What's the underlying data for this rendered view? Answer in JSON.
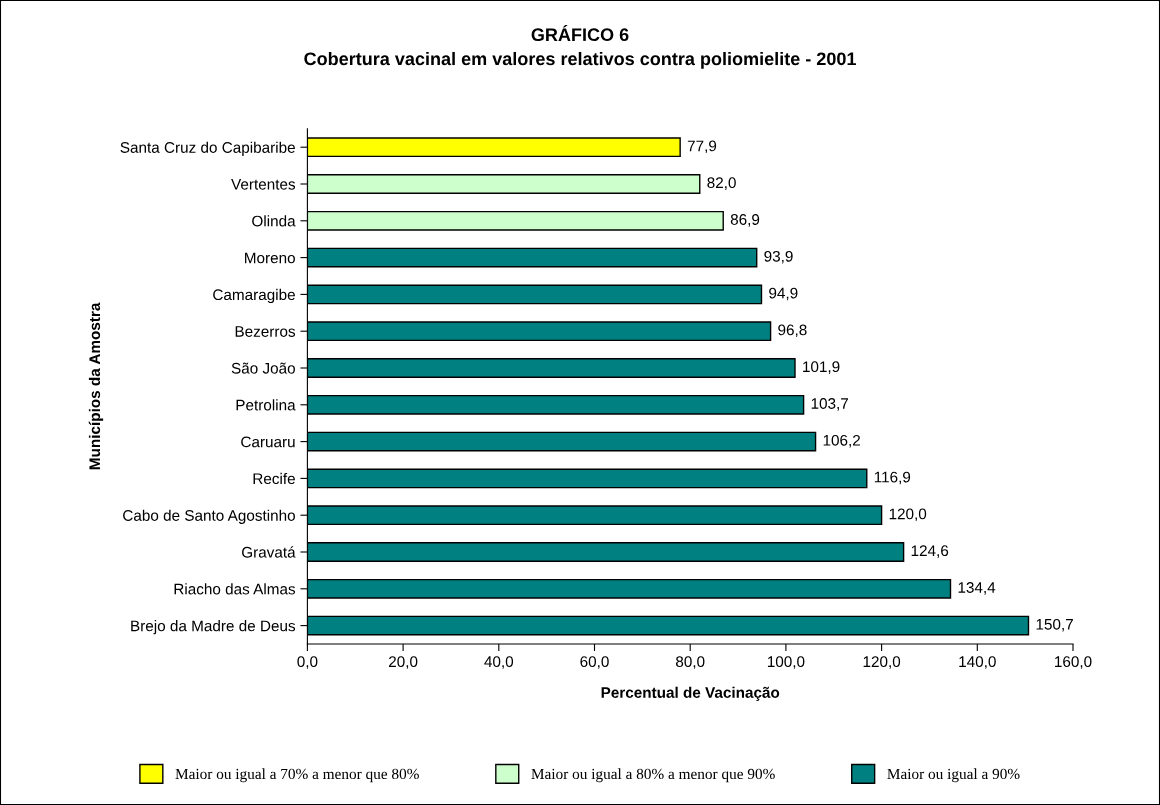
{
  "chart_data": {
    "type": "bar",
    "orientation": "horizontal",
    "title": "GRÁFICO 6",
    "subtitle": "Cobertura vacinal em valores relativos contra poliomielite - 2001",
    "xlabel": "Percentual de Vacinação",
    "ylabel": "Municípios da Amostra",
    "categories": [
      "Santa Cruz do Capibaribe",
      "Vertentes",
      "Olinda",
      "Moreno",
      "Camaragibe",
      "Bezerros",
      "São João",
      "Petrolina",
      "Caruaru",
      "Recife",
      "Cabo de Santo Agostinho",
      "Gravatá",
      "Riacho das Almas",
      "Brejo da Madre de Deus"
    ],
    "series": [
      {
        "name": "Maior ou igual a 70% a menor que 80%",
        "color": "#ffff00",
        "values": [
          77.9,
          null,
          null,
          null,
          null,
          null,
          null,
          null,
          null,
          null,
          null,
          null,
          null,
          null
        ],
        "value_labels": [
          "77,9",
          null,
          null,
          null,
          null,
          null,
          null,
          null,
          null,
          null,
          null,
          null,
          null,
          null
        ]
      },
      {
        "name": "Maior ou igual a 80% a menor que 90%",
        "color": "#ccffcc",
        "values": [
          null,
          82.0,
          86.9,
          null,
          null,
          null,
          null,
          null,
          null,
          null,
          null,
          null,
          null,
          null
        ],
        "value_labels": [
          null,
          "82,0",
          "86,9",
          null,
          null,
          null,
          null,
          null,
          null,
          null,
          null,
          null,
          null,
          null
        ]
      },
      {
        "name": "Maior ou igual a 90%",
        "color": "#008080",
        "values": [
          null,
          null,
          null,
          93.9,
          94.9,
          96.8,
          101.9,
          103.7,
          106.2,
          116.9,
          120.0,
          124.6,
          134.4,
          150.7
        ],
        "value_labels": [
          null,
          null,
          null,
          "93,9",
          "94,9",
          "96,8",
          "101,9",
          "103,7",
          "106,2",
          "116,9",
          "120,0",
          "124,6",
          "134,4",
          "150,7"
        ]
      }
    ],
    "xlim": [
      0,
      160
    ],
    "xticks": [
      {
        "value": 0,
        "label": "0,0"
      },
      {
        "value": 20,
        "label": "20,0"
      },
      {
        "value": 40,
        "label": "40,0"
      },
      {
        "value": 60,
        "label": "60,0"
      },
      {
        "value": 80,
        "label": "80,0"
      },
      {
        "value": 100,
        "label": "100,0"
      },
      {
        "value": 120,
        "label": "120,0"
      },
      {
        "value": 140,
        "label": "140,0"
      },
      {
        "value": 160,
        "label": "160,0"
      }
    ],
    "legend": "bottom",
    "grid": false
  }
}
